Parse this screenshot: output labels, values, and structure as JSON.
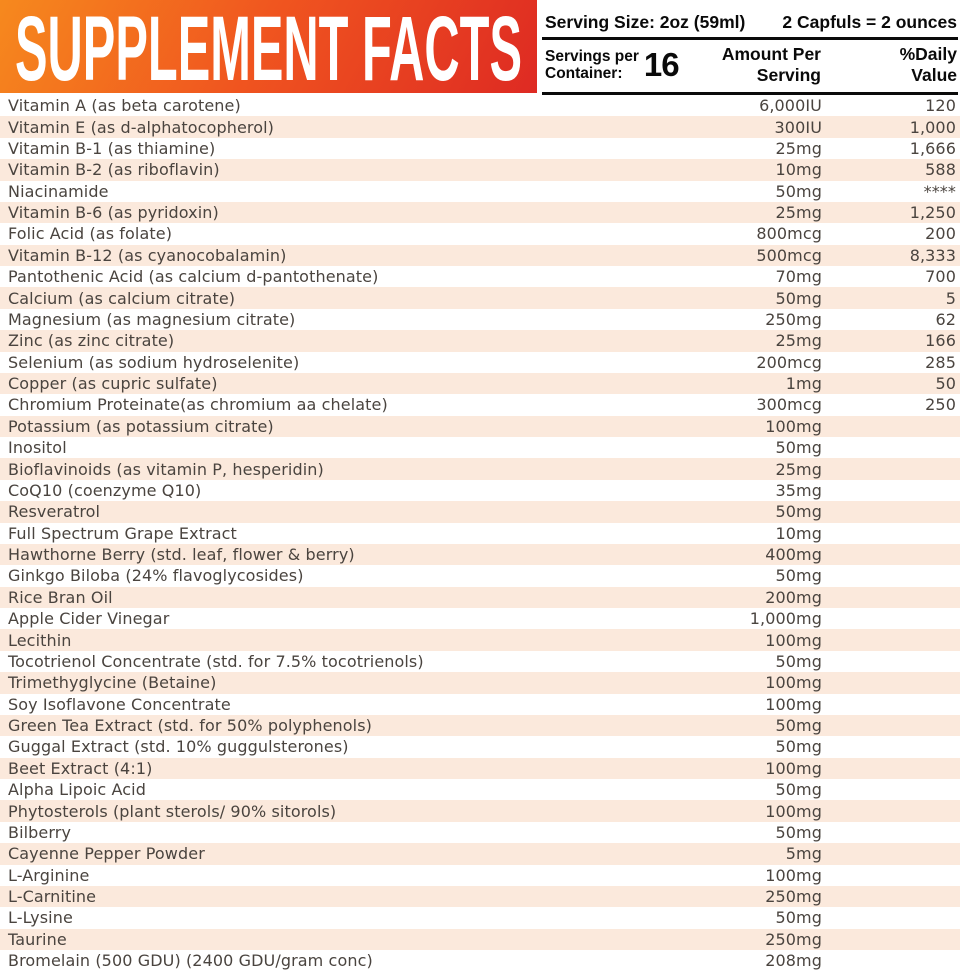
{
  "banner": {
    "title": "SUPPLEMENT FACTS"
  },
  "header": {
    "serving_size": "Serving Size: 2oz (59ml)",
    "capfuls_note": "2 Capfuls = 2 ounces",
    "servings_per_line1": "Servings per",
    "servings_per_line2": "Container:",
    "servings_count": "16",
    "amount_col_line1": "Amount Per",
    "amount_col_line2": "Serving",
    "dv_col_line1": "%Daily",
    "dv_col_line2": "Value"
  },
  "colors": {
    "banner_gradient_start": "#f6891e",
    "banner_gradient_end": "#de2a23",
    "stripe": "#fbe9dc",
    "row_text": "#4a443f",
    "header_text": "#0a0a0a"
  },
  "table": {
    "rows": [
      {
        "name": "Vitamin A (as beta carotene)",
        "amount": "6,000IU",
        "dv": "120"
      },
      {
        "name": "Vitamin E (as d-alphatocopherol)",
        "amount": "300IU",
        "dv": "1,000"
      },
      {
        "name": "Vitamin B-1 (as thiamine)",
        "amount": "25mg",
        "dv": "1,666"
      },
      {
        "name": "Vitamin B-2 (as riboflavin)",
        "amount": "10mg",
        "dv": "588"
      },
      {
        "name": "Niacinamide",
        "amount": "50mg",
        "dv": "****"
      },
      {
        "name": "Vitamin B-6 (as pyridoxin)",
        "amount": "25mg",
        "dv": "1,250"
      },
      {
        "name": "Folic Acid (as folate)",
        "amount": "800mcg",
        "dv": "200"
      },
      {
        "name": "Vitamin B-12 (as cyanocobalamin)",
        "amount": "500mcg",
        "dv": "8,333"
      },
      {
        "name": "Pantothenic Acid (as calcium d-pantothenate)",
        "amount": "70mg",
        "dv": "700"
      },
      {
        "name": "Calcium (as calcium citrate)",
        "amount": "50mg",
        "dv": "5"
      },
      {
        "name": "Magnesium (as magnesium citrate)",
        "amount": "250mg",
        "dv": "62"
      },
      {
        "name": "Zinc (as zinc citrate)",
        "amount": "25mg",
        "dv": "166"
      },
      {
        "name": "Selenium (as sodium hydroselenite)",
        "amount": "200mcg",
        "dv": "285"
      },
      {
        "name": "Copper (as cupric sulfate)",
        "amount": "1mg",
        "dv": "50"
      },
      {
        "name": "Chromium Proteinate(as chromium aa chelate)",
        "amount": "300mcg",
        "dv": "250"
      },
      {
        "name": "Potassium (as potassium citrate)",
        "amount": "100mg",
        "dv": ""
      },
      {
        "name": "Inositol",
        "amount": "50mg",
        "dv": ""
      },
      {
        "name": "Bioflavinoids (as vitamin P, hesperidin)",
        "amount": "25mg",
        "dv": ""
      },
      {
        "name": "CoQ10 (coenzyme Q10)",
        "amount": "35mg",
        "dv": ""
      },
      {
        "name": "Resveratrol",
        "amount": "50mg",
        "dv": ""
      },
      {
        "name": "Full Spectrum Grape Extract",
        "amount": "10mg",
        "dv": ""
      },
      {
        "name": "Hawthorne Berry (std. leaf, flower & berry)",
        "amount": "400mg",
        "dv": ""
      },
      {
        "name": "Ginkgo Biloba (24% flavoglycosides)",
        "amount": "50mg",
        "dv": ""
      },
      {
        "name": "Rice Bran Oil",
        "amount": "200mg",
        "dv": ""
      },
      {
        "name": "Apple Cider Vinegar",
        "amount": "1,000mg",
        "dv": ""
      },
      {
        "name": "Lecithin",
        "amount": "100mg",
        "dv": ""
      },
      {
        "name": "Tocotrienol Concentrate (std. for 7.5% tocotrienols)",
        "amount": "50mg",
        "dv": ""
      },
      {
        "name": "Trimethyglycine (Betaine)",
        "amount": "100mg",
        "dv": ""
      },
      {
        "name": "Soy Isoflavone Concentrate",
        "amount": "100mg",
        "dv": ""
      },
      {
        "name": "Green Tea Extract (std. for 50% polyphenols)",
        "amount": "50mg",
        "dv": ""
      },
      {
        "name": "Guggal Extract (std. 10% guggulsterones)",
        "amount": "50mg",
        "dv": ""
      },
      {
        "name": "Beet Extract (4:1)",
        "amount": "100mg",
        "dv": ""
      },
      {
        "name": "Alpha Lipoic Acid",
        "amount": "50mg",
        "dv": ""
      },
      {
        "name": "Phytosterols (plant sterols/ 90% sitorols)",
        "amount": "100mg",
        "dv": ""
      },
      {
        "name": "Bilberry",
        "amount": "50mg",
        "dv": ""
      },
      {
        "name": "Cayenne Pepper Powder",
        "amount": "5mg",
        "dv": ""
      },
      {
        "name": "L-Arginine",
        "amount": "100mg",
        "dv": ""
      },
      {
        "name": "L-Carnitine",
        "amount": "250mg",
        "dv": ""
      },
      {
        "name": "L-Lysine",
        "amount": "50mg",
        "dv": ""
      },
      {
        "name": "Taurine",
        "amount": "250mg",
        "dv": ""
      },
      {
        "name": "Bromelain (500 GDU) (2400 GDU/gram conc)",
        "amount": "208mg",
        "dv": ""
      }
    ]
  }
}
